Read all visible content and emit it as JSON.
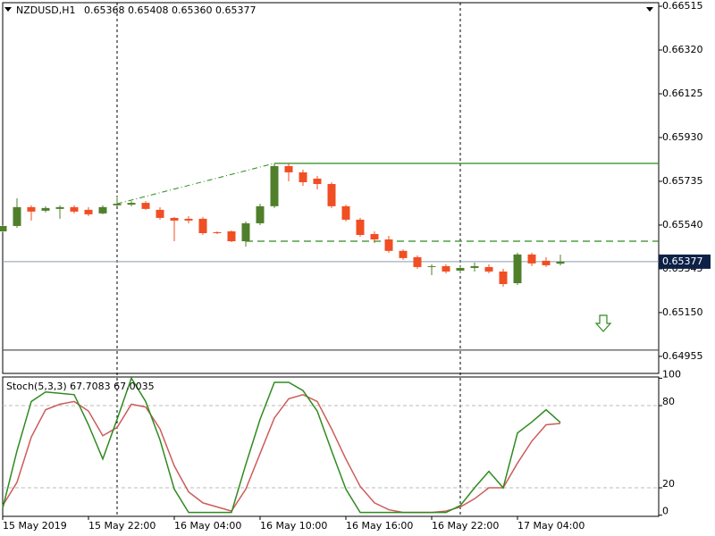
{
  "chart_data": [
    {
      "type": "candlestick",
      "title": "NZDUSD,H1",
      "subtitle": "0.65368 0.65408 0.65360 0.65377",
      "categories": [
        "15 May 2019",
        null,
        null,
        null,
        null,
        null,
        "15 May 22:00",
        null,
        null,
        null,
        null,
        null,
        "16 May 04:00",
        null,
        null,
        null,
        null,
        null,
        "16 May 10:00",
        null,
        null,
        null,
        null,
        null,
        "16 May 16:00",
        null,
        null,
        null,
        null,
        null,
        "16 May 22:00",
        null,
        null,
        null,
        null,
        null,
        "17 May 04:00",
        null,
        null,
        null
      ],
      "open": [
        0.65512,
        0.65536,
        0.6562,
        0.65604,
        0.65612,
        0.6562,
        0.65608,
        0.65592,
        0.65628,
        0.65631,
        0.65639,
        0.65608,
        0.65572,
        0.65568,
        0.65568,
        0.65508,
        0.65512,
        0.65468,
        0.65548,
        0.65624,
        0.65803,
        0.65775,
        0.65747,
        0.65723,
        0.65624,
        0.65564,
        0.655,
        0.65476,
        0.65425,
        0.65397,
        0.65353,
        0.65357,
        0.65337,
        0.65349,
        0.65353,
        0.65333,
        0.65281,
        0.65409,
        0.65381,
        0.65368
      ],
      "high": [
        0.6554,
        0.65659,
        0.65628,
        0.65624,
        0.65628,
        0.65628,
        0.6562,
        0.65628,
        0.65667,
        0.65647,
        0.65647,
        0.6562,
        0.65576,
        0.6558,
        0.65576,
        0.65512,
        0.65516,
        0.65556,
        0.65635,
        0.65815,
        0.65815,
        0.65787,
        0.65759,
        0.65731,
        0.65631,
        0.65572,
        0.65512,
        0.65492,
        0.65432,
        0.65405,
        0.65365,
        0.65365,
        0.65357,
        0.65373,
        0.65365,
        0.65345,
        0.65417,
        0.65417,
        0.65397,
        0.65408
      ],
      "low": [
        0.65508,
        0.65528,
        0.6556,
        0.65596,
        0.65568,
        0.65592,
        0.6558,
        0.65588,
        0.65624,
        0.65624,
        0.65608,
        0.65564,
        0.65468,
        0.65548,
        0.65496,
        0.655,
        0.65464,
        0.65444,
        0.6554,
        0.65616,
        0.65735,
        0.65715,
        0.65699,
        0.65616,
        0.65556,
        0.65488,
        0.6546,
        0.65417,
        0.65385,
        0.65345,
        0.65317,
        0.65325,
        0.65325,
        0.65333,
        0.65325,
        0.65265,
        0.65273,
        0.65357,
        0.65353,
        0.6536
      ],
      "close": [
        0.65536,
        0.6562,
        0.656,
        0.65616,
        0.6562,
        0.656,
        0.65588,
        0.6562,
        0.65635,
        0.65639,
        0.65612,
        0.65572,
        0.6556,
        0.6556,
        0.65504,
        0.65504,
        0.65468,
        0.65548,
        0.65624,
        0.65803,
        0.65775,
        0.65731,
        0.65723,
        0.65624,
        0.65564,
        0.65496,
        0.65476,
        0.65425,
        0.65393,
        0.65353,
        0.65357,
        0.65333,
        0.65349,
        0.65357,
        0.65333,
        0.65277,
        0.65409,
        0.65369,
        0.65361,
        0.65377
      ],
      "up_color": "#4f7f2b",
      "down_color": "#f04e23",
      "ylim": [
        0.64879,
        0.66531
      ],
      "yticks": [
        0.66515,
        {
          "value": 0.6632,
          "label": "0.66320"
        },
        0.66125,
        {
          "value": 0.6593,
          "label": "0.65930"
        },
        0.65735,
        {
          "value": 0.6554,
          "label": "0.65540"
        },
        0.65345,
        {
          "value": 0.6515,
          "label": "0.65150"
        },
        0.64955
      ],
      "current_price": 0.65377,
      "levels": [
        {
          "value": 0.65815,
          "from": 19,
          "color": "#2e8b1f",
          "dash": "none"
        },
        {
          "value": 0.65468,
          "from": 17,
          "color": "#2e8b1f",
          "dash": "8 5"
        },
        {
          "value": 0.64983,
          "from": 0,
          "color": "#555555",
          "dash": "none"
        }
      ],
      "trendline": {
        "index": [
          8,
          19
        ],
        "values": [
          0.65635,
          0.65815
        ],
        "color": "#2e8b1f"
      }
    },
    {
      "type": "line",
      "title": "Stoch(5,3,3) 67.7083 67.0035",
      "series": [
        {
          "color": "#2e8b1f",
          "values": [
            5,
            47,
            83,
            90,
            89,
            88,
            66,
            41,
            70,
            100,
            83,
            55,
            19,
            2,
            2,
            2,
            2,
            37,
            70,
            97,
            97,
            91,
            76,
            47,
            19,
            2,
            2,
            2,
            2,
            2,
            2,
            2,
            7,
            20,
            32,
            20,
            60,
            68,
            77,
            67.7083
          ]
        },
        {
          "color": "#cd5c5c",
          "values": [
            7,
            24,
            57,
            77,
            81,
            83,
            76,
            58,
            64,
            81,
            79,
            63,
            36,
            17,
            9,
            6,
            3,
            19,
            45,
            71,
            85,
            88,
            83,
            63,
            41,
            21,
            9,
            4,
            2,
            2,
            2,
            3,
            6,
            12,
            20,
            20,
            38,
            54,
            66,
            67.0035
          ]
        }
      ],
      "ylim": [
        -0.85,
        100.9
      ],
      "yticks": [
        100,
        80,
        20,
        0
      ],
      "levels": [
        80,
        20
      ]
    }
  ]
}
